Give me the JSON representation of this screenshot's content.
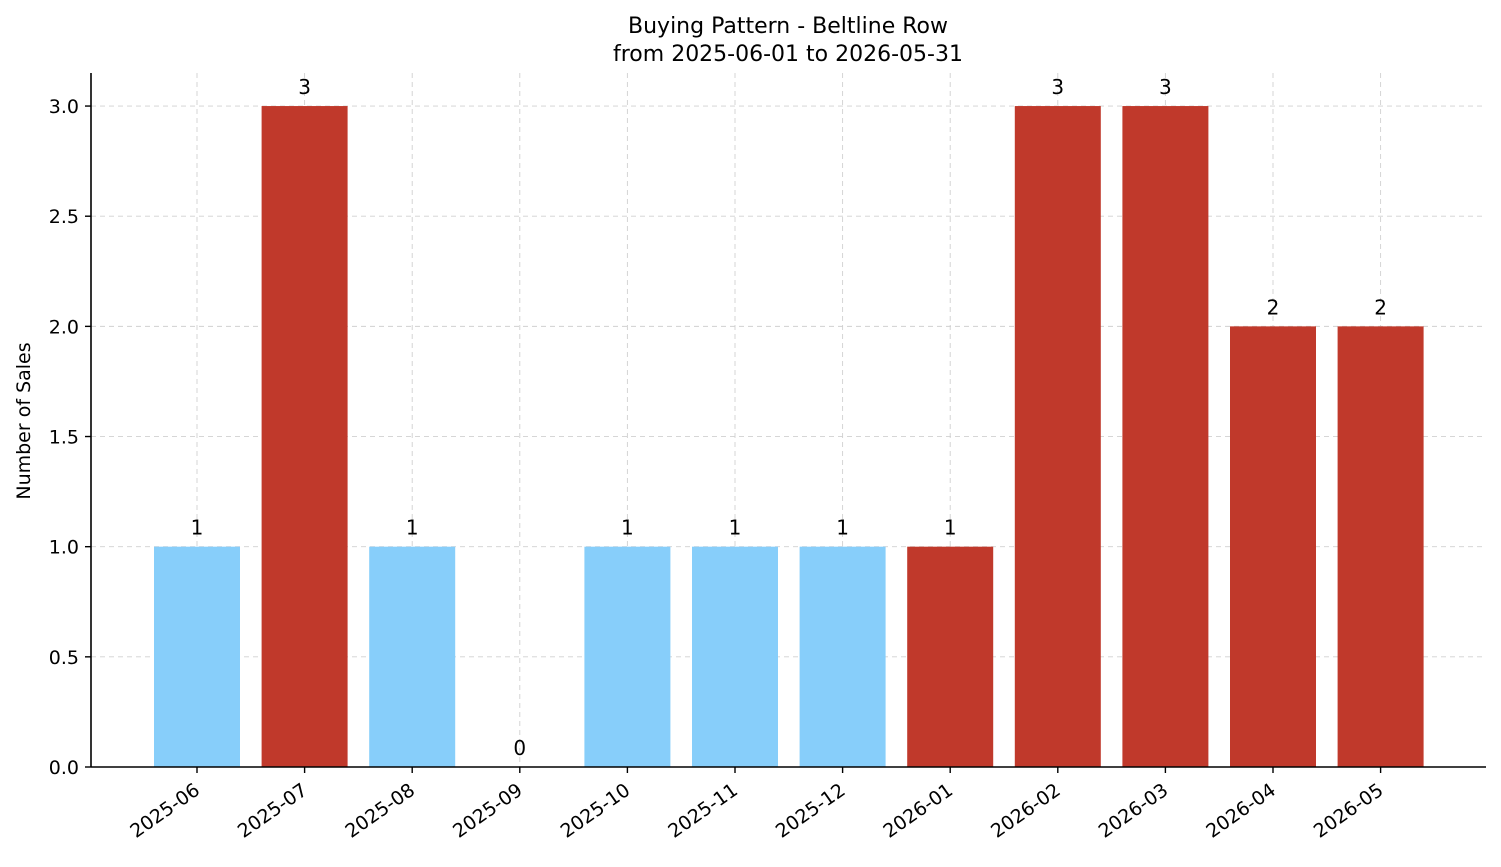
{
  "chart_data": {
    "type": "bar",
    "title": "Buying Pattern - Beltline Row",
    "subtitle": "from 2025-06-01 to 2026-05-31",
    "xlabel": "",
    "ylabel": "Number of Sales",
    "categories": [
      "2025-06",
      "2025-07",
      "2025-08",
      "2025-09",
      "2025-10",
      "2025-11",
      "2025-12",
      "2026-01",
      "2026-02",
      "2026-03",
      "2026-04",
      "2026-05"
    ],
    "values": [
      1,
      3,
      1,
      0,
      1,
      1,
      1,
      1,
      3,
      3,
      2,
      2
    ],
    "bar_colors": [
      "#87CEFA",
      "#C0392B",
      "#87CEFA",
      "#87CEFA",
      "#87CEFA",
      "#87CEFA",
      "#87CEFA",
      "#C0392B",
      "#C0392B",
      "#C0392B",
      "#C0392B",
      "#C0392B"
    ],
    "ylim": [
      0,
      3.15
    ],
    "yticks": [
      "0.0",
      "0.5",
      "1.0",
      "1.5",
      "2.0",
      "2.5",
      "3.0"
    ],
    "grid": true,
    "legend": "none"
  }
}
